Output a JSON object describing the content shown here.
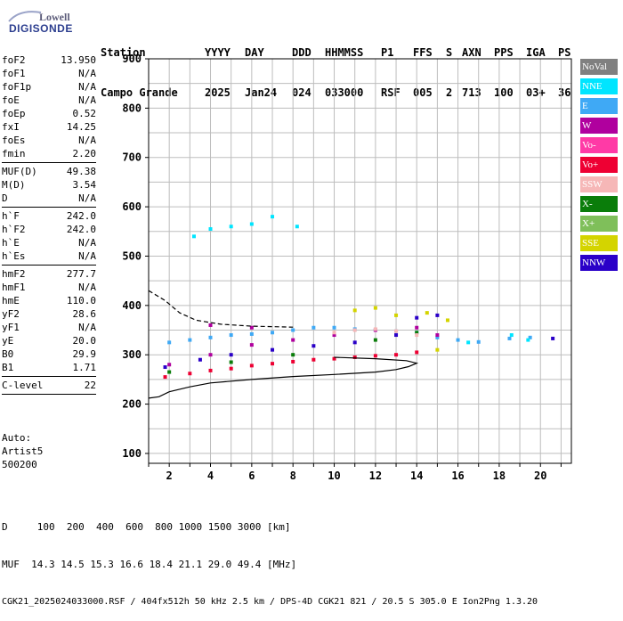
{
  "logo": {
    "line1": "Lowell",
    "line2": "DIGISONDE"
  },
  "header": {
    "cols": [
      {
        "label": "Station",
        "value": "Campo Grande"
      },
      {
        "label": "YYYY",
        "value": "2025"
      },
      {
        "label": "DAY",
        "value": "Jan24"
      },
      {
        "label": "DDD",
        "value": "024"
      },
      {
        "label": "HHMMSS",
        "value": "033000"
      },
      {
        "label": "P1",
        "value": "RSF"
      },
      {
        "label": "FFS",
        "value": "005"
      },
      {
        "label": "S",
        "value": "2"
      },
      {
        "label": "AXN",
        "value": "713"
      },
      {
        "label": "PPS",
        "value": "100"
      },
      {
        "label": "IGA",
        "value": "03+"
      },
      {
        "label": "PS",
        "value": "36"
      }
    ]
  },
  "params": [
    [
      {
        "key": "foF2",
        "value": "13.950"
      },
      {
        "key": "foF1",
        "value": "N/A"
      },
      {
        "key": "foF1p",
        "value": "N/A"
      },
      {
        "key": "foE",
        "value": "N/A"
      },
      {
        "key": "foEp",
        "value": "0.52"
      },
      {
        "key": "fxI",
        "value": "14.25"
      },
      {
        "key": "foEs",
        "value": "N/A"
      },
      {
        "key": "fmin",
        "value": "2.20"
      }
    ],
    [
      {
        "key": "MUF(D)",
        "value": "49.38"
      },
      {
        "key": "M(D)",
        "value": "3.54"
      },
      {
        "key": "D",
        "value": "N/A"
      }
    ],
    [
      {
        "key": "h`F",
        "value": "242.0"
      },
      {
        "key": "h`F2",
        "value": "242.0"
      },
      {
        "key": "h`E",
        "value": "N/A"
      },
      {
        "key": "h`Es",
        "value": "N/A"
      }
    ],
    [
      {
        "key": "hmF2",
        "value": "277.7"
      },
      {
        "key": "hmF1",
        "value": "N/A"
      },
      {
        "key": "hmE",
        "value": "110.0"
      },
      {
        "key": "yF2",
        "value": "28.6"
      },
      {
        "key": "yF1",
        "value": "N/A"
      },
      {
        "key": "yE",
        "value": "20.0"
      },
      {
        "key": "B0",
        "value": "29.9"
      },
      {
        "key": "B1",
        "value": "1.71"
      }
    ],
    [
      {
        "key": "C-level",
        "value": "22"
      }
    ]
  ],
  "auto": [
    "Auto:",
    "Artist5",
    "500200"
  ],
  "legend": [
    {
      "label": "NoVal",
      "bg": "#808080",
      "fg": "#ffffff"
    },
    {
      "label": "NNE",
      "bg": "#00e5ff",
      "fg": "#ffffff"
    },
    {
      "label": "E",
      "bg": "#3fa9f5",
      "fg": "#ffffff"
    },
    {
      "label": "W",
      "bg": "#b0009e",
      "fg": "#ffffff"
    },
    {
      "label": "Vo-",
      "bg": "#ff3aa6",
      "fg": "#ffffff"
    },
    {
      "label": "Vo+",
      "bg": "#ee0033",
      "fg": "#ffffff"
    },
    {
      "label": "SSW",
      "bg": "#f6b7b7",
      "fg": "#ffffff"
    },
    {
      "label": "X-",
      "bg": "#0a7d0a",
      "fg": "#ffffff"
    },
    {
      "label": "X+",
      "bg": "#7fbf5a",
      "fg": "#ffffff"
    },
    {
      "label": "SSE",
      "bg": "#d4d400",
      "fg": "#ffffff"
    },
    {
      "label": "NNW",
      "bg": "#2a00c8",
      "fg": "#ffffff"
    }
  ],
  "chart_data": {
    "type": "scatter",
    "title": "",
    "xlabel": "",
    "ylabel": "",
    "xlim": [
      1,
      21.5
    ],
    "ylim": [
      80,
      900
    ],
    "xticks": [
      2,
      4,
      6,
      8,
      10,
      12,
      14,
      16,
      18,
      20
    ],
    "yticks": [
      100,
      200,
      300,
      400,
      500,
      600,
      700,
      800,
      900
    ],
    "grid": true,
    "legend_position": "right",
    "series": [
      {
        "name": "E",
        "color": "#3fa9f5",
        "points": [
          [
            2.0,
            325
          ],
          [
            3.0,
            330
          ],
          [
            4.0,
            335
          ],
          [
            5.0,
            340
          ],
          [
            6.0,
            342
          ],
          [
            7.0,
            345
          ],
          [
            8.0,
            350
          ],
          [
            9.0,
            355
          ],
          [
            10.0,
            355
          ],
          [
            11.0,
            352
          ],
          [
            12.0,
            350
          ],
          [
            13.0,
            348
          ],
          [
            14.0,
            345
          ],
          [
            15.0,
            335
          ],
          [
            16.0,
            330
          ],
          [
            17.0,
            326
          ],
          [
            18.5,
            333
          ],
          [
            19.5,
            335
          ]
        ]
      },
      {
        "name": "NNE",
        "color": "#00e5ff",
        "points": [
          [
            3.2,
            540
          ],
          [
            4.0,
            555
          ],
          [
            5.0,
            560
          ],
          [
            6.0,
            565
          ],
          [
            7.0,
            580
          ],
          [
            8.2,
            560
          ],
          [
            16.5,
            325
          ],
          [
            18.6,
            340
          ],
          [
            19.4,
            330
          ]
        ]
      },
      {
        "name": "W",
        "color": "#b0009e",
        "points": [
          [
            2.0,
            280
          ],
          [
            4.0,
            300
          ],
          [
            6.0,
            320
          ],
          [
            8.0,
            330
          ],
          [
            10.0,
            340
          ],
          [
            12.0,
            350
          ],
          [
            14.0,
            355
          ],
          [
            15.0,
            340
          ],
          [
            4.0,
            360
          ],
          [
            6.0,
            355
          ]
        ]
      },
      {
        "name": "Vo+",
        "color": "#ee0033",
        "points": [
          [
            1.8,
            255
          ],
          [
            3.0,
            262
          ],
          [
            4.0,
            268
          ],
          [
            5.0,
            272
          ],
          [
            6.0,
            278
          ],
          [
            7.0,
            282
          ],
          [
            8.0,
            286
          ],
          [
            9.0,
            290
          ],
          [
            10.0,
            292
          ],
          [
            11.0,
            295
          ],
          [
            12.0,
            298
          ],
          [
            13.0,
            300
          ],
          [
            14.0,
            305
          ]
        ]
      },
      {
        "name": "NNW",
        "color": "#2a00c8",
        "points": [
          [
            1.8,
            275
          ],
          [
            3.5,
            290
          ],
          [
            5.0,
            300
          ],
          [
            7.0,
            310
          ],
          [
            9.0,
            318
          ],
          [
            11.0,
            325
          ],
          [
            13.0,
            340
          ],
          [
            14.0,
            375
          ],
          [
            15.0,
            380
          ],
          [
            20.6,
            333
          ]
        ]
      },
      {
        "name": "SSE",
        "color": "#d4d400",
        "points": [
          [
            11.0,
            390
          ],
          [
            12.0,
            395
          ],
          [
            13.0,
            380
          ],
          [
            14.5,
            385
          ],
          [
            15.5,
            370
          ],
          [
            15.0,
            310
          ]
        ]
      },
      {
        "name": "X-",
        "color": "#0a7d0a",
        "points": [
          [
            2.0,
            265
          ],
          [
            5.0,
            285
          ],
          [
            8.0,
            300
          ],
          [
            12.0,
            330
          ],
          [
            14.0,
            345
          ]
        ]
      },
      {
        "name": "SSW",
        "color": "#f6b7b7",
        "points": [
          [
            10.0,
            345
          ],
          [
            11.0,
            350
          ],
          [
            12.0,
            352
          ],
          [
            13.0,
            348
          ],
          [
            14.0,
            340
          ]
        ]
      }
    ],
    "traces": [
      {
        "kind": "virtual-height-trace",
        "style": "dashed",
        "points": [
          [
            1,
            430
          ],
          [
            1.8,
            410
          ],
          [
            2.5,
            385
          ],
          [
            3.3,
            370
          ],
          [
            4.5,
            362
          ],
          [
            6.0,
            358
          ],
          [
            8.0,
            356
          ]
        ]
      },
      {
        "kind": "profile",
        "style": "solid",
        "points": [
          [
            1,
            212
          ],
          [
            1.5,
            215
          ],
          [
            2.0,
            225
          ],
          [
            3.0,
            235
          ],
          [
            4.0,
            243
          ],
          [
            6.0,
            250
          ],
          [
            8.0,
            256
          ],
          [
            10.0,
            260
          ],
          [
            12.0,
            265
          ],
          [
            13.0,
            270
          ],
          [
            13.6,
            276
          ],
          [
            14.0,
            283
          ],
          [
            13.5,
            288
          ],
          [
            12.0,
            292
          ],
          [
            10.0,
            295
          ]
        ]
      }
    ]
  },
  "footer": {
    "d_row": "D     100  200  400  600  800 1000 1500 3000 [km]",
    "muf_row": "MUF  14.3 14.5 15.3 16.6 18.4 21.1 29.0 49.4 [MHz]",
    "file_row": "CGK21_2025024033000.RSF / 404fx512h 50 kHz 2.5 km / DPS-4D CGK21 821 / 20.5 S 305.0 E Ion2Png 1.3.20"
  }
}
